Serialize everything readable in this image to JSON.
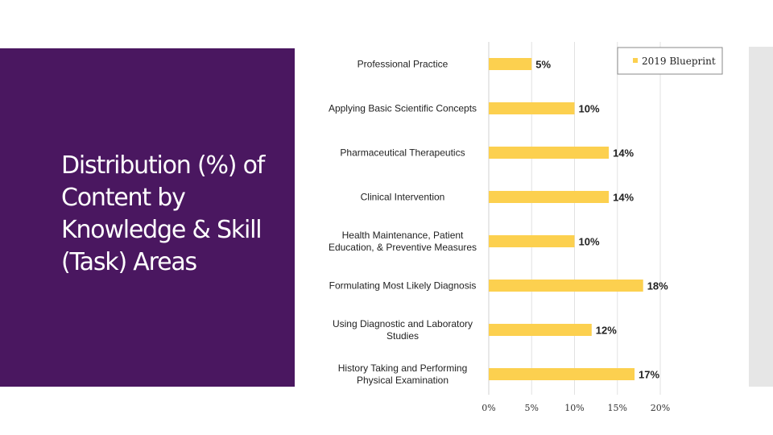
{
  "slide": {
    "title": "Distribution (%) of Content by Knowledge & Skill (Task) Areas"
  },
  "chart_data": {
    "type": "bar",
    "orientation": "horizontal",
    "categories": [
      "Professional Practice",
      "Applying Basic Scientific Concepts",
      "Pharmaceutical Therapeutics",
      "Clinical Intervention",
      "Health Maintenance, Patient Education, & Preventive Measures",
      "Formulating Most Likely Diagnosis",
      "Using Diagnostic and Laboratory Studies",
      "History Taking and Performing Physical Examination"
    ],
    "category_lines": [
      [
        "Professional Practice"
      ],
      [
        "Applying Basic Scientific Concepts"
      ],
      [
        "Pharmaceutical Therapeutics"
      ],
      [
        "Clinical Intervention"
      ],
      [
        "Health Maintenance, Patient",
        "Education, & Preventive Measures"
      ],
      [
        "Formulating Most Likely Diagnosis"
      ],
      [
        "Using Diagnostic and Laboratory",
        "Studies"
      ],
      [
        "History Taking and Performing",
        "Physical Examination"
      ]
    ],
    "series": [
      {
        "name": "2019 Blueprint",
        "values": [
          5,
          10,
          14,
          14,
          10,
          18,
          12,
          17
        ],
        "value_labels": [
          "5%",
          "10%",
          "14%",
          "14%",
          "10%",
          "18%",
          "12%",
          "17%"
        ],
        "color": "#fcd04f"
      }
    ],
    "xlim": [
      0,
      20
    ],
    "x_ticks": [
      0,
      5,
      10,
      15,
      20
    ],
    "x_tick_labels": [
      "0%",
      "5%",
      "10%",
      "15%",
      "20%"
    ],
    "grid": true,
    "legend": "top-right"
  }
}
